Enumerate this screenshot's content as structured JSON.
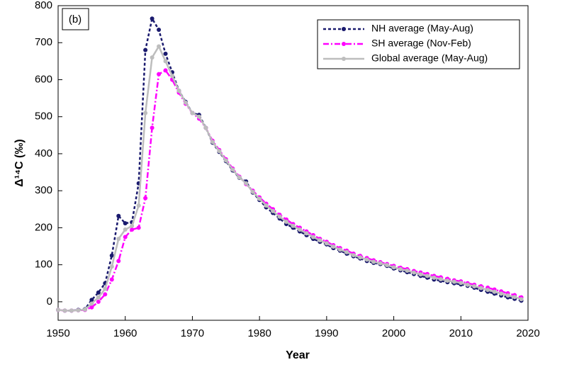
{
  "chart_data": {
    "type": "line",
    "annotation": "(b)",
    "x_label": "Year",
    "y_label": "Δ¹⁴C (‰)",
    "xlim": [
      1950,
      2020
    ],
    "xticks": [
      1950,
      1960,
      1970,
      1980,
      1990,
      2000,
      2010,
      2020
    ],
    "ylim": [
      -50,
      800
    ],
    "yticks": [
      0,
      100,
      200,
      300,
      400,
      500,
      600,
      700,
      800
    ],
    "legend": "upper right",
    "x": [
      1950,
      1951,
      1952,
      1953,
      1954,
      1955,
      1956,
      1957,
      1958,
      1959,
      1960,
      1961,
      1962,
      1963,
      1964,
      1965,
      1966,
      1967,
      1968,
      1969,
      1970,
      1971,
      1972,
      1973,
      1974,
      1975,
      1976,
      1977,
      1978,
      1979,
      1980,
      1981,
      1982,
      1983,
      1984,
      1985,
      1986,
      1987,
      1988,
      1989,
      1990,
      1991,
      1992,
      1993,
      1994,
      1995,
      1996,
      1997,
      1998,
      1999,
      2000,
      2001,
      2002,
      2003,
      2004,
      2005,
      2006,
      2007,
      2008,
      2009,
      2010,
      2011,
      2012,
      2013,
      2014,
      2015,
      2016,
      2017,
      2018,
      2019
    ],
    "series": [
      {
        "name": "NH average (May-Aug)",
        "color": "#1a1a6e",
        "dash": "4,3",
        "values": [
          -22,
          -24,
          -24,
          -22,
          -20,
          5,
          25,
          50,
          125,
          232,
          212,
          215,
          320,
          680,
          765,
          735,
          670,
          620,
          570,
          540,
          510,
          505,
          470,
          430,
          405,
          380,
          355,
          335,
          325,
          295,
          275,
          255,
          240,
          225,
          210,
          200,
          190,
          180,
          170,
          162,
          155,
          145,
          138,
          130,
          123,
          117,
          110,
          105,
          102,
          97,
          90,
          85,
          80,
          75,
          70,
          65,
          60,
          57,
          53,
          50,
          47,
          43,
          38,
          32,
          27,
          22,
          17,
          12,
          8,
          3
        ]
      },
      {
        "name": "SH average (Nov-Feb)",
        "color": "#ff00ff",
        "dash": "8,3,2,3",
        "values": [
          -22,
          -24,
          -24,
          -23,
          -22,
          -15,
          0,
          20,
          60,
          110,
          175,
          195,
          200,
          280,
          470,
          615,
          625,
          600,
          565,
          535,
          510,
          495,
          470,
          435,
          410,
          385,
          360,
          338,
          318,
          300,
          282,
          265,
          250,
          235,
          222,
          210,
          200,
          190,
          180,
          170,
          162,
          153,
          145,
          138,
          130,
          124,
          118,
          112,
          107,
          102,
          97,
          92,
          88,
          83,
          79,
          75,
          70,
          66,
          62,
          58,
          55,
          50,
          46,
          42,
          38,
          33,
          28,
          23,
          18,
          12
        ]
      },
      {
        "name": "Global average (May-Aug)",
        "color": "#bdbdbd",
        "dash": "",
        "values": [
          -22,
          -24,
          -24,
          -23,
          -21,
          -5,
          12,
          35,
          95,
          170,
          195,
          205,
          260,
          510,
          660,
          690,
          650,
          610,
          570,
          538,
          510,
          500,
          470,
          432,
          407,
          382,
          357,
          336,
          320,
          297,
          278,
          260,
          245,
          230,
          216,
          205,
          195,
          185,
          175,
          166,
          158,
          149,
          141,
          134,
          126,
          120,
          114,
          108,
          104,
          99,
          93,
          88,
          84,
          79,
          74,
          70,
          65,
          61,
          57,
          54,
          51,
          46,
          42,
          37,
          32,
          27,
          22,
          17,
          13,
          7
        ]
      }
    ]
  }
}
